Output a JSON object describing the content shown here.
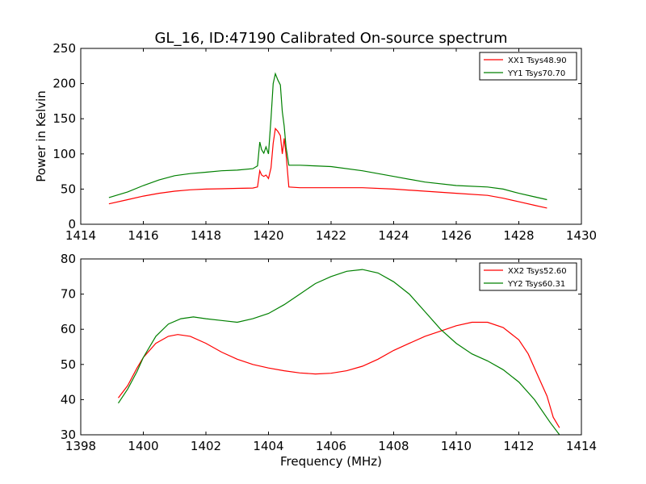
{
  "figure": {
    "title": "GL_16, ID:47190 Calibrated On-source spectrum",
    "xlabel": "Frequency (MHz)"
  },
  "chart_data": [
    {
      "type": "line",
      "title": "GL_16, ID:47190 Calibrated On-source spectrum",
      "xlabel": "",
      "ylabel": "Power in Kelvin",
      "xlim": [
        1414,
        1430
      ],
      "ylim": [
        0,
        250
      ],
      "xticks": [
        1414,
        1416,
        1418,
        1420,
        1422,
        1424,
        1426,
        1428,
        1430
      ],
      "yticks": [
        0,
        50,
        100,
        150,
        200,
        250
      ],
      "grid": false,
      "legend": "top-right",
      "series": [
        {
          "name": "XX1 Tsys48.90",
          "color": "#ff0000",
          "points": [
            [
              1414.9,
              29
            ],
            [
              1415.5,
              35
            ],
            [
              1416.0,
              40
            ],
            [
              1416.5,
              44
            ],
            [
              1417.0,
              47
            ],
            [
              1417.5,
              49
            ],
            [
              1418.0,
              50
            ],
            [
              1418.5,
              50.5
            ],
            [
              1419.0,
              51
            ],
            [
              1419.5,
              51.5
            ],
            [
              1419.65,
              53
            ],
            [
              1419.72,
              76
            ],
            [
              1419.78,
              70
            ],
            [
              1419.85,
              68
            ],
            [
              1419.92,
              70
            ],
            [
              1420.0,
              65
            ],
            [
              1420.08,
              80
            ],
            [
              1420.15,
              115
            ],
            [
              1420.22,
              136
            ],
            [
              1420.3,
              132
            ],
            [
              1420.38,
              126
            ],
            [
              1420.44,
              100
            ],
            [
              1420.5,
              122
            ],
            [
              1420.56,
              100
            ],
            [
              1420.65,
              53
            ],
            [
              1421.0,
              52
            ],
            [
              1422.0,
              52
            ],
            [
              1423.0,
              52
            ],
            [
              1424.0,
              50
            ],
            [
              1425.0,
              47
            ],
            [
              1426.0,
              44
            ],
            [
              1427.0,
              41
            ],
            [
              1427.5,
              37
            ],
            [
              1428.0,
              32
            ],
            [
              1428.5,
              27
            ],
            [
              1428.9,
              23
            ]
          ]
        },
        {
          "name": "YY1 Tsys70.70",
          "color": "#008000",
          "points": [
            [
              1414.9,
              38
            ],
            [
              1415.5,
              46
            ],
            [
              1416.0,
              55
            ],
            [
              1416.5,
              63
            ],
            [
              1417.0,
              69
            ],
            [
              1417.5,
              72
            ],
            [
              1418.0,
              74
            ],
            [
              1418.5,
              76
            ],
            [
              1419.0,
              77
            ],
            [
              1419.5,
              79
            ],
            [
              1419.65,
              83
            ],
            [
              1419.72,
              117
            ],
            [
              1419.78,
              106
            ],
            [
              1419.85,
              101
            ],
            [
              1419.92,
              110
            ],
            [
              1420.0,
              100
            ],
            [
              1420.08,
              150
            ],
            [
              1420.15,
              200
            ],
            [
              1420.22,
              214
            ],
            [
              1420.3,
              205
            ],
            [
              1420.38,
              198
            ],
            [
              1420.44,
              160
            ],
            [
              1420.5,
              140
            ],
            [
              1420.56,
              110
            ],
            [
              1420.65,
              84
            ],
            [
              1421.0,
              84
            ],
            [
              1422.0,
              82
            ],
            [
              1423.0,
              76
            ],
            [
              1424.0,
              68
            ],
            [
              1425.0,
              60
            ],
            [
              1426.0,
              55
            ],
            [
              1427.0,
              53
            ],
            [
              1427.5,
              50
            ],
            [
              1428.0,
              44
            ],
            [
              1428.5,
              39
            ],
            [
              1428.9,
              35
            ]
          ]
        }
      ]
    },
    {
      "type": "line",
      "title": "",
      "xlabel": "Frequency (MHz)",
      "ylabel": "",
      "xlim": [
        1398,
        1414
      ],
      "ylim": [
        30,
        80
      ],
      "xticks": [
        1398,
        1400,
        1402,
        1404,
        1406,
        1408,
        1410,
        1412,
        1414
      ],
      "yticks": [
        30,
        40,
        50,
        60,
        70,
        80
      ],
      "grid": false,
      "legend": "top-right",
      "series": [
        {
          "name": "XX2 Tsys52.60",
          "color": "#ff0000",
          "points": [
            [
              1399.2,
              40.5
            ],
            [
              1399.5,
              44
            ],
            [
              1399.8,
              49
            ],
            [
              1400.0,
              52
            ],
            [
              1400.4,
              56
            ],
            [
              1400.8,
              58
            ],
            [
              1401.1,
              58.5
            ],
            [
              1401.5,
              58
            ],
            [
              1402.0,
              56
            ],
            [
              1402.5,
              53.5
            ],
            [
              1403.0,
              51.5
            ],
            [
              1403.5,
              50
            ],
            [
              1404.0,
              49
            ],
            [
              1404.5,
              48.2
            ],
            [
              1405.0,
              47.6
            ],
            [
              1405.5,
              47.3
            ],
            [
              1406.0,
              47.5
            ],
            [
              1406.5,
              48.2
            ],
            [
              1407.0,
              49.5
            ],
            [
              1407.5,
              51.5
            ],
            [
              1408.0,
              54
            ],
            [
              1408.5,
              56
            ],
            [
              1409.0,
              58
            ],
            [
              1409.5,
              59.5
            ],
            [
              1410.0,
              61
            ],
            [
              1410.5,
              62
            ],
            [
              1411.0,
              62
            ],
            [
              1411.5,
              60.5
            ],
            [
              1412.0,
              57
            ],
            [
              1412.3,
              53
            ],
            [
              1412.6,
              47
            ],
            [
              1412.9,
              41
            ],
            [
              1413.1,
              35
            ],
            [
              1413.3,
              32
            ]
          ]
        },
        {
          "name": "YY2 Tsys60.31",
          "color": "#008000",
          "points": [
            [
              1399.2,
              39
            ],
            [
              1399.5,
              43
            ],
            [
              1399.8,
              48
            ],
            [
              1400.0,
              52
            ],
            [
              1400.4,
              58
            ],
            [
              1400.8,
              61.5
            ],
            [
              1401.2,
              63
            ],
            [
              1401.6,
              63.5
            ],
            [
              1402.0,
              63
            ],
            [
              1402.5,
              62.5
            ],
            [
              1403.0,
              62
            ],
            [
              1403.5,
              63
            ],
            [
              1404.0,
              64.5
            ],
            [
              1404.5,
              67
            ],
            [
              1405.0,
              70
            ],
            [
              1405.5,
              73
            ],
            [
              1406.0,
              75
            ],
            [
              1406.5,
              76.5
            ],
            [
              1407.0,
              77
            ],
            [
              1407.5,
              76
            ],
            [
              1408.0,
              73.5
            ],
            [
              1408.5,
              70
            ],
            [
              1409.0,
              65
            ],
            [
              1409.5,
              60
            ],
            [
              1410.0,
              56
            ],
            [
              1410.5,
              53
            ],
            [
              1411.0,
              51
            ],
            [
              1411.5,
              48.5
            ],
            [
              1412.0,
              45
            ],
            [
              1412.5,
              40
            ],
            [
              1413.0,
              33.5
            ],
            [
              1413.3,
              30
            ]
          ]
        }
      ]
    }
  ]
}
